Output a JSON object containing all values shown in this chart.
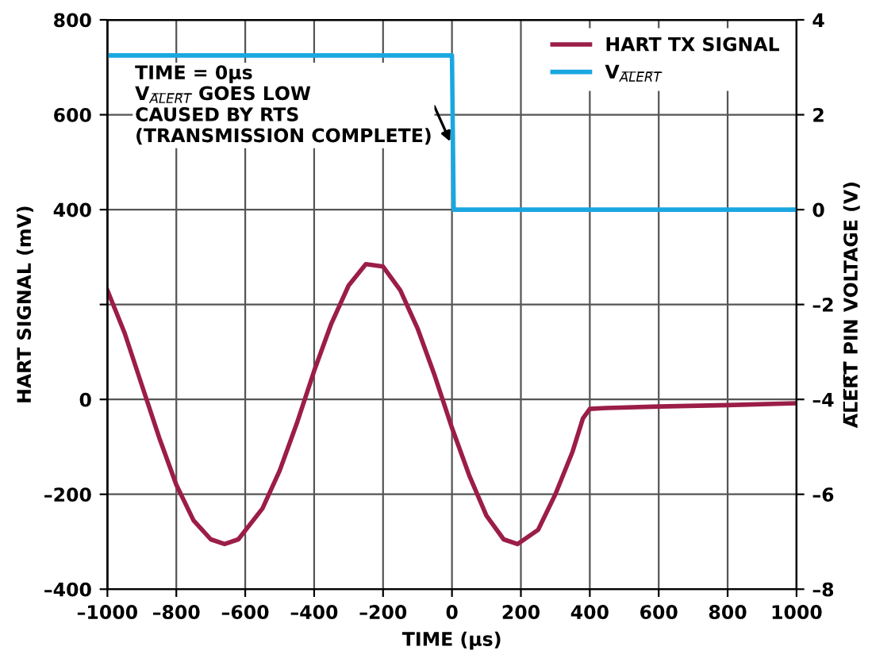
{
  "chart_data": {
    "type": "line",
    "xlabel": "TIME (µs)",
    "ylabel": "HART SIGNAL (mV)",
    "y2label": "A̅L̅E̅R̅T̅ PIN VOLTAGE (V)",
    "xlim": [
      -1000,
      1000
    ],
    "xticks": [
      {
        "value": -1000,
        "label": "–1000"
      },
      {
        "value": -800,
        "label": "–800"
      },
      {
        "value": -600,
        "label": "–600"
      },
      {
        "value": -400,
        "label": "–400"
      },
      {
        "value": -200,
        "label": "–200"
      },
      0,
      200,
      400,
      600,
      800,
      1000
    ],
    "ylim": [
      -400,
      800
    ],
    "yticks": [
      {
        "value": -400,
        "label": "–400"
      },
      {
        "value": -200,
        "label": "–200"
      },
      0,
      {
        "value": 200,
        "label": null
      },
      400,
      600,
      800
    ],
    "y2lim": [
      -8,
      4
    ],
    "y2ticks": [
      {
        "value": -8,
        "label": "–8"
      },
      {
        "value": -6,
        "label": "–6"
      },
      {
        "value": -4,
        "label": "–4"
      },
      {
        "value": -2,
        "label": "–2"
      },
      0,
      2,
      4
    ],
    "grid": true,
    "legend": "top right",
    "marker": "none",
    "line_style": "solid",
    "series": [
      {
        "name": "HART TX SIGNAL",
        "color": "#9b1d48",
        "x": [
          -1000,
          -950,
          -900,
          -850,
          -800,
          -750,
          -700,
          -660,
          -620,
          -550,
          -500,
          -450,
          -400,
          -350,
          -300,
          -250,
          -200,
          -150,
          -100,
          -50,
          0,
          50,
          100,
          150,
          190,
          250,
          300,
          350,
          380,
          400,
          450,
          600,
          800,
          1000
        ],
        "values": [
          230,
          140,
          30,
          -80,
          -180,
          -255,
          -295,
          -305,
          -295,
          -230,
          -150,
          -50,
          60,
          160,
          240,
          285,
          280,
          230,
          150,
          50,
          -60,
          -160,
          -245,
          -295,
          -305,
          -275,
          -200,
          -110,
          -40,
          -20,
          -18,
          -15,
          -12,
          -8
        ]
      },
      {
        "name": "V$_{A̅L̅E̅R̅T̅}$",
        "color": "#1aa7e0",
        "axis": "y2",
        "x": [
          -1000,
          0,
          5,
          1000
        ],
        "values": [
          3.25,
          3.25,
          0,
          0
        ]
      }
    ],
    "annotations": [
      {
        "text": "TIME = 0µs\nV$_{A̅L̅E̅R̅T̅}$ GOES LOW\nCAUSED BY RTS\n(TRANSMISSION COMPLETE)",
        "x": 0,
        "y": 535
      }
    ]
  }
}
